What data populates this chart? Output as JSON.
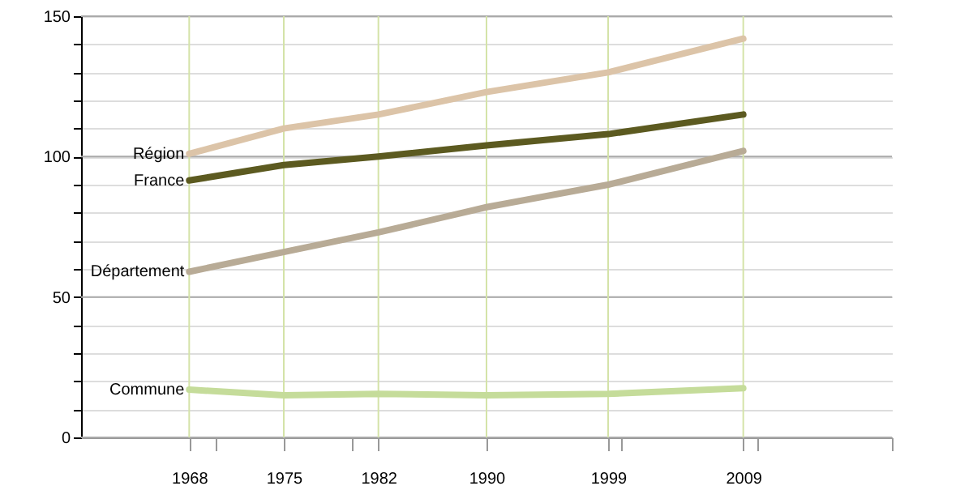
{
  "chart_data": {
    "type": "line",
    "x": [
      1968,
      1975,
      1982,
      1990,
      1999,
      2009
    ],
    "series": [
      {
        "name": "Région",
        "color": "#dcc4a8",
        "values": [
          101,
          110,
          115,
          123,
          130,
          142
        ]
      },
      {
        "name": "France",
        "color": "#5c5a20",
        "values": [
          91.5,
          97,
          100,
          104,
          108,
          115
        ]
      },
      {
        "name": "Département",
        "color": "#b8ab96",
        "values": [
          59,
          66,
          73,
          82,
          90,
          102
        ]
      },
      {
        "name": "Commune",
        "color": "#c5dc9a",
        "values": [
          17,
          15,
          15.5,
          15,
          15.5,
          17.5
        ]
      }
    ],
    "xlim": [
      1960,
      2020
    ],
    "xticks": [
      1968,
      1975,
      1982,
      1990,
      1999,
      2009,
      {
        "value": 1970,
        "label": null
      },
      {
        "value": 1980,
        "label": null
      },
      {
        "value": 2000,
        "label": null
      },
      {
        "value": 2010,
        "label": null
      },
      {
        "value": 2020,
        "label": null
      }
    ],
    "ylim": [
      0,
      150
    ],
    "yticks": [
      0,
      50,
      100,
      150,
      {
        "value": 10,
        "label": null
      },
      {
        "value": 20,
        "label": null
      },
      {
        "value": 30,
        "label": null
      },
      {
        "value": 40,
        "label": null
      },
      {
        "value": 60,
        "label": null
      },
      {
        "value": 70,
        "label": null
      },
      {
        "value": 80,
        "label": null
      },
      {
        "value": 90,
        "label": null
      },
      {
        "value": 110,
        "label": null
      },
      {
        "value": 120,
        "label": null
      },
      {
        "value": 130,
        "label": null
      },
      {
        "value": 140,
        "label": null
      }
    ],
    "grid": true,
    "legend": "left",
    "marker": "none",
    "line_style": "solid"
  }
}
